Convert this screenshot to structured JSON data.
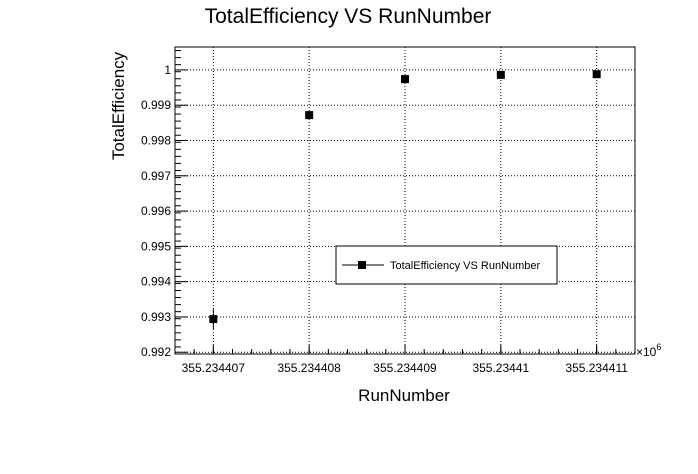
{
  "chart_data": {
    "type": "scatter",
    "title": "TotalEfficiency VS RunNumber",
    "xlabel": "RunNumber",
    "ylabel": "TotalEfficiency",
    "x_exponent_label": "×10",
    "x_exponent_power": "6",
    "x_tick_labels": [
      "355.234407",
      "355.234408",
      "355.234409",
      "355.23441",
      "355.234411"
    ],
    "y_tick_labels": [
      "0.992",
      "0.993",
      "0.994",
      "0.995",
      "0.996",
      "0.997",
      "0.998",
      "0.999",
      "1"
    ],
    "xlim": [
      355234406.6,
      355234411.4
    ],
    "ylim": [
      0.99195,
      1.00065
    ],
    "grid": true,
    "legend_position": "center-right",
    "series": [
      {
        "name": "TotalEfficiency VS RunNumber",
        "color": "#000000",
        "marker": "square",
        "points": [
          {
            "x": 355234407,
            "y": 0.99294,
            "err": 0.00028
          },
          {
            "x": 355234408,
            "y": 0.99872,
            "err": 5e-05
          },
          {
            "x": 355234409,
            "y": 0.99974,
            "err": 3e-05
          },
          {
            "x": 355234410,
            "y": 0.99986,
            "err": 2e-05
          },
          {
            "x": 355234411,
            "y": 0.99988,
            "err": 2e-05
          }
        ]
      }
    ]
  }
}
